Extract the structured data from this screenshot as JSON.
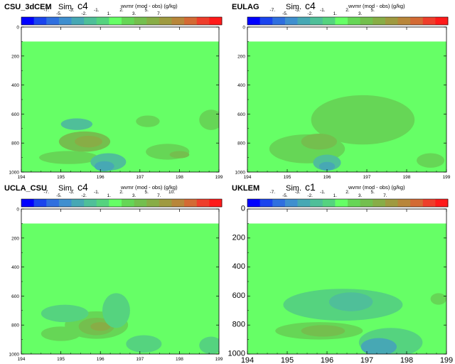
{
  "chart_data": [
    {
      "type": "heatmap",
      "model": "CSU_3dCEM",
      "sim_prefix": "Sim.",
      "sim": "c4",
      "colorbar_label": "wvmr (mod - obs) (g/kg)",
      "colorbar_ticks": [
        "-7.",
        "-5.",
        "-3.",
        "-2.",
        "-1.",
        "1.",
        "2.",
        "3.",
        "5.",
        "7."
      ],
      "x_ticks": [
        "194",
        "195",
        "196",
        "197",
        "198",
        "199"
      ],
      "y_ticks": [
        "0",
        "200",
        "400",
        "600",
        "800",
        "1000"
      ],
      "xlim": [
        194,
        199
      ],
      "ylim": [
        0,
        1000
      ],
      "y_inverted": true,
      "data_top": 100,
      "features": [
        {
          "x": 195.2,
          "y": 900,
          "rx": 0.75,
          "ry": 45,
          "value": 1.5
        },
        {
          "x": 195.6,
          "y": 790,
          "rx": 0.65,
          "ry": 70,
          "value": 2.5
        },
        {
          "x": 195.7,
          "y": 790,
          "rx": 0.35,
          "ry": 40,
          "value": 3.5
        },
        {
          "x": 196.2,
          "y": 930,
          "rx": 0.45,
          "ry": 60,
          "value": -2.5
        },
        {
          "x": 196.1,
          "y": 960,
          "rx": 0.25,
          "ry": 35,
          "value": -4
        },
        {
          "x": 195.4,
          "y": 670,
          "rx": 0.4,
          "ry": 40,
          "value": -2.5
        },
        {
          "x": 197.2,
          "y": 650,
          "rx": 0.3,
          "ry": 40,
          "value": 1.2
        },
        {
          "x": 197.7,
          "y": 860,
          "rx": 0.55,
          "ry": 55,
          "value": 1.2
        },
        {
          "x": 198.0,
          "y": 880,
          "rx": 0.25,
          "ry": 25,
          "value": 2.2
        },
        {
          "x": 198.8,
          "y": 640,
          "rx": 0.3,
          "ry": 70,
          "value": 1.2
        }
      ]
    },
    {
      "type": "heatmap",
      "model": "EULAG",
      "sim_prefix": "Sim.",
      "sim": "c4",
      "colorbar_label": "wvmr (mod - obs) (g/kg)",
      "colorbar_ticks": [
        "-7.",
        "-5.",
        "-3.",
        "-2.",
        "-1.",
        "1.",
        "2.",
        "3.",
        "5."
      ],
      "x_ticks": [
        "194",
        "195",
        "196",
        "197",
        "198",
        "199"
      ],
      "y_ticks": [
        "0",
        "200",
        "400",
        "600",
        "800",
        "1000"
      ],
      "xlim": [
        194,
        199
      ],
      "ylim": [
        0,
        1000
      ],
      "y_inverted": true,
      "data_top": 100,
      "features": [
        {
          "x": 196.9,
          "y": 640,
          "rx": 1.3,
          "ry": 170,
          "value": 1.2
        },
        {
          "x": 195.5,
          "y": 840,
          "rx": 0.95,
          "ry": 100,
          "value": 1.5
        },
        {
          "x": 195.8,
          "y": 790,
          "rx": 0.45,
          "ry": 55,
          "value": 2.5
        },
        {
          "x": 196.0,
          "y": 935,
          "rx": 0.35,
          "ry": 55,
          "value": -2.5
        },
        {
          "x": 196.0,
          "y": 960,
          "rx": 0.2,
          "ry": 30,
          "value": -4
        },
        {
          "x": 198.6,
          "y": 920,
          "rx": 0.35,
          "ry": 50,
          "value": 1.2
        }
      ]
    },
    {
      "type": "heatmap",
      "model": "UCLA_CSU",
      "sim_prefix": "Sim.",
      "sim": "c4",
      "colorbar_label": "wvmr (mod - obs) (g/kg)",
      "colorbar_ticks": [
        "-7.",
        "-5.",
        "-3.",
        "-2.",
        "-1.",
        "1.",
        "2.",
        "3.",
        "5.",
        "7.",
        "10."
      ],
      "x_ticks": [
        "194",
        "195",
        "196",
        "197",
        "198",
        "199"
      ],
      "y_ticks": [
        "0",
        "200",
        "400",
        "600",
        "800",
        "1000"
      ],
      "xlim": [
        194,
        199
      ],
      "ylim": [
        0,
        1000
      ],
      "y_inverted": true,
      "data_top": 100,
      "features": [
        {
          "x": 195.9,
          "y": 800,
          "rx": 0.8,
          "ry": 95,
          "value": 1.5
        },
        {
          "x": 195.9,
          "y": 810,
          "rx": 0.45,
          "ry": 60,
          "value": 2.5
        },
        {
          "x": 196.0,
          "y": 810,
          "rx": 0.25,
          "ry": 30,
          "value": 3.5
        },
        {
          "x": 195.0,
          "y": 860,
          "rx": 0.5,
          "ry": 50,
          "value": 1.2
        },
        {
          "x": 195.1,
          "y": 720,
          "rx": 0.6,
          "ry": 60,
          "value": -1.5
        },
        {
          "x": 196.4,
          "y": 700,
          "rx": 0.35,
          "ry": 120,
          "value": -1.2
        },
        {
          "x": 197.1,
          "y": 930,
          "rx": 0.45,
          "ry": 60,
          "value": -1.5
        },
        {
          "x": 198.8,
          "y": 940,
          "rx": 0.3,
          "ry": 60,
          "value": -1.5
        }
      ]
    },
    {
      "type": "heatmap",
      "model": "UKLEM",
      "sim_prefix": "Sim.",
      "sim": "c1",
      "colorbar_label": "wvmr (mod - obs) (g/kg)",
      "colorbar_ticks": [
        "-7.",
        "-5.",
        "-3.",
        "-2.",
        "-1.",
        "1.",
        "2.",
        "3.",
        "5.",
        "7."
      ],
      "x_ticks": [
        "194",
        "195",
        "196",
        "197",
        "198",
        "199"
      ],
      "y_ticks": [
        "0",
        "200",
        "400",
        "600",
        "800",
        "1000"
      ],
      "xlim": [
        194,
        199
      ],
      "ylim": [
        0,
        1000
      ],
      "y_inverted": true,
      "data_top": 100,
      "features": [
        {
          "x": 196.4,
          "y": 660,
          "rx": 1.5,
          "ry": 110,
          "value": -1.2
        },
        {
          "x": 196.6,
          "y": 640,
          "rx": 0.55,
          "ry": 65,
          "value": -2.5
        },
        {
          "x": 195.8,
          "y": 840,
          "rx": 1.1,
          "ry": 60,
          "value": 1.5
        },
        {
          "x": 195.9,
          "y": 840,
          "rx": 0.55,
          "ry": 40,
          "value": 2.5
        },
        {
          "x": 197.6,
          "y": 920,
          "rx": 0.8,
          "ry": 100,
          "value": -1.5
        },
        {
          "x": 197.3,
          "y": 950,
          "rx": 0.45,
          "ry": 60,
          "value": -3.5
        },
        {
          "x": 198.8,
          "y": 620,
          "rx": 0.2,
          "ry": 40,
          "value": 1.2
        }
      ]
    }
  ],
  "colors": {
    "background": "#66ff66",
    "scale": [
      "#0000ff",
      "#1a44ee",
      "#2f6fdf",
      "#3f8fcf",
      "#47a8b4",
      "#4fbf99",
      "#55d37f",
      "#66ff66",
      "#66d656",
      "#74bf4e",
      "#88ad46",
      "#9f9a40",
      "#b8863a",
      "#d36a34",
      "#ee3e2b",
      "#ff1a1a"
    ]
  }
}
